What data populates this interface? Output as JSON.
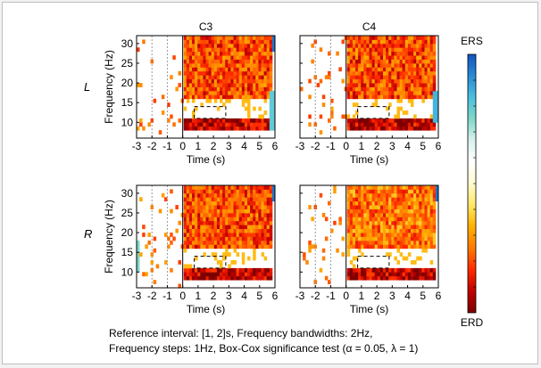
{
  "figure": {
    "caption_line1": "Reference interval: [1, 2]s, Frequency bandwidths: 2Hz,",
    "caption_line2": "Frequency steps: 1Hz, Box-Cox significance test (α = 0.05, λ = 1)"
  },
  "colorbar": {
    "top_label": "ERS",
    "bottom_label": "ERD",
    "stops": [
      "#7a0000",
      "#c20000",
      "#ff2a00",
      "#ff7a00",
      "#ffb000",
      "#ffe866",
      "#fffbd0",
      "#ffffff",
      "#d8f2ee",
      "#7fd8c7",
      "#4cc0e0",
      "#2a8ad6",
      "#1155c0"
    ]
  },
  "chart_data": [
    {
      "type": "heatmap",
      "row": "L",
      "column": "C3",
      "title": "C3",
      "xlabel": "Time (s)",
      "ylabel": "Frequency (Hz)",
      "xlim": [
        -3,
        6
      ],
      "ylim": [
        6,
        32
      ],
      "xticks": [
        "-3",
        "-2",
        "-1",
        "0",
        "1",
        "2",
        "3",
        "4",
        "5",
        "6"
      ],
      "yticks": [
        "10",
        "15",
        "20",
        "25",
        "30"
      ],
      "reference_lines": [
        -2,
        -1,
        0
      ],
      "highlight_box": {
        "t": [
          0.75,
          2.8
        ],
        "f": [
          11,
          14
        ]
      },
      "erd_bands": [
        {
          "f": [
            8,
            11
          ],
          "t": [
            0,
            5.8
          ],
          "level": -0.85
        },
        {
          "f": [
            16,
            32
          ],
          "t": [
            0,
            5.8
          ],
          "level": -0.6
        }
      ],
      "ers_regions": [
        {
          "f": [
            28,
            32
          ],
          "t": [
            5.8,
            6
          ],
          "level": 0.9
        },
        {
          "f": [
            8,
            18
          ],
          "t": [
            5.6,
            6
          ],
          "level": 0.6
        }
      ]
    },
    {
      "type": "heatmap",
      "row": "L",
      "column": "C4",
      "title": "C4",
      "xlabel": "Time (s)",
      "ylabel": "",
      "xlim": [
        -3,
        6
      ],
      "ylim": [
        6,
        32
      ],
      "xticks": [
        "-3",
        "-2",
        "-1",
        "0",
        "1",
        "2",
        "3",
        "4",
        "5",
        "6"
      ],
      "yticks": [],
      "reference_lines": [
        -2,
        -1,
        0
      ],
      "highlight_box": {
        "t": [
          0.75,
          2.8
        ],
        "f": [
          11,
          14
        ]
      },
      "erd_bands": [
        {
          "f": [
            8,
            11
          ],
          "t": [
            0,
            5.8
          ],
          "level": -0.85
        },
        {
          "f": [
            16,
            32
          ],
          "t": [
            0,
            5.8
          ],
          "level": -0.6
        }
      ],
      "ers_regions": [
        {
          "f": [
            10,
            18
          ],
          "t": [
            5.6,
            6
          ],
          "level": 0.7
        }
      ]
    },
    {
      "type": "heatmap",
      "row": "R",
      "column": "C3",
      "title": "",
      "xlabel": "Time (s)",
      "ylabel": "Frequency (Hz)",
      "xlim": [
        -3,
        6
      ],
      "ylim": [
        6,
        32
      ],
      "xticks": [
        "-3",
        "-2",
        "-1",
        "0",
        "1",
        "2",
        "3",
        "4",
        "5",
        "6"
      ],
      "yticks": [
        "10",
        "15",
        "20",
        "25",
        "30"
      ],
      "reference_lines": [
        -2,
        -1,
        0
      ],
      "highlight_box": {
        "t": [
          0.75,
          2.8
        ],
        "f": [
          11,
          14
        ]
      },
      "erd_bands": [
        {
          "f": [
            8,
            11
          ],
          "t": [
            0,
            5.8
          ],
          "level": -0.85
        },
        {
          "f": [
            16,
            32
          ],
          "t": [
            0,
            5.8
          ],
          "level": -0.6
        }
      ],
      "ers_regions": [
        {
          "f": [
            28,
            32
          ],
          "t": [
            5.8,
            6
          ],
          "level": 0.9
        },
        {
          "f": [
            10,
            18
          ],
          "t": [
            -3,
            -2.9
          ],
          "level": 0.5
        }
      ]
    },
    {
      "type": "heatmap",
      "row": "R",
      "column": "C4",
      "title": "",
      "xlabel": "Time (s)",
      "ylabel": "",
      "xlim": [
        -3,
        6
      ],
      "ylim": [
        6,
        32
      ],
      "xticks": [
        "-3",
        "-2",
        "-1",
        "0",
        "1",
        "2",
        "3",
        "4",
        "5",
        "6"
      ],
      "yticks": [],
      "reference_lines": [
        -2,
        -1,
        0
      ],
      "highlight_box": {
        "t": [
          0.75,
          2.8
        ],
        "f": [
          11,
          14
        ]
      },
      "erd_bands": [
        {
          "f": [
            8,
            11
          ],
          "t": [
            0,
            5.8
          ],
          "level": -0.85
        },
        {
          "f": [
            16,
            32
          ],
          "t": [
            0,
            5.8
          ],
          "level": -0.5
        }
      ],
      "ers_regions": [
        {
          "f": [
            28,
            32
          ],
          "t": [
            5.8,
            6
          ],
          "level": 0.9
        }
      ]
    }
  ]
}
